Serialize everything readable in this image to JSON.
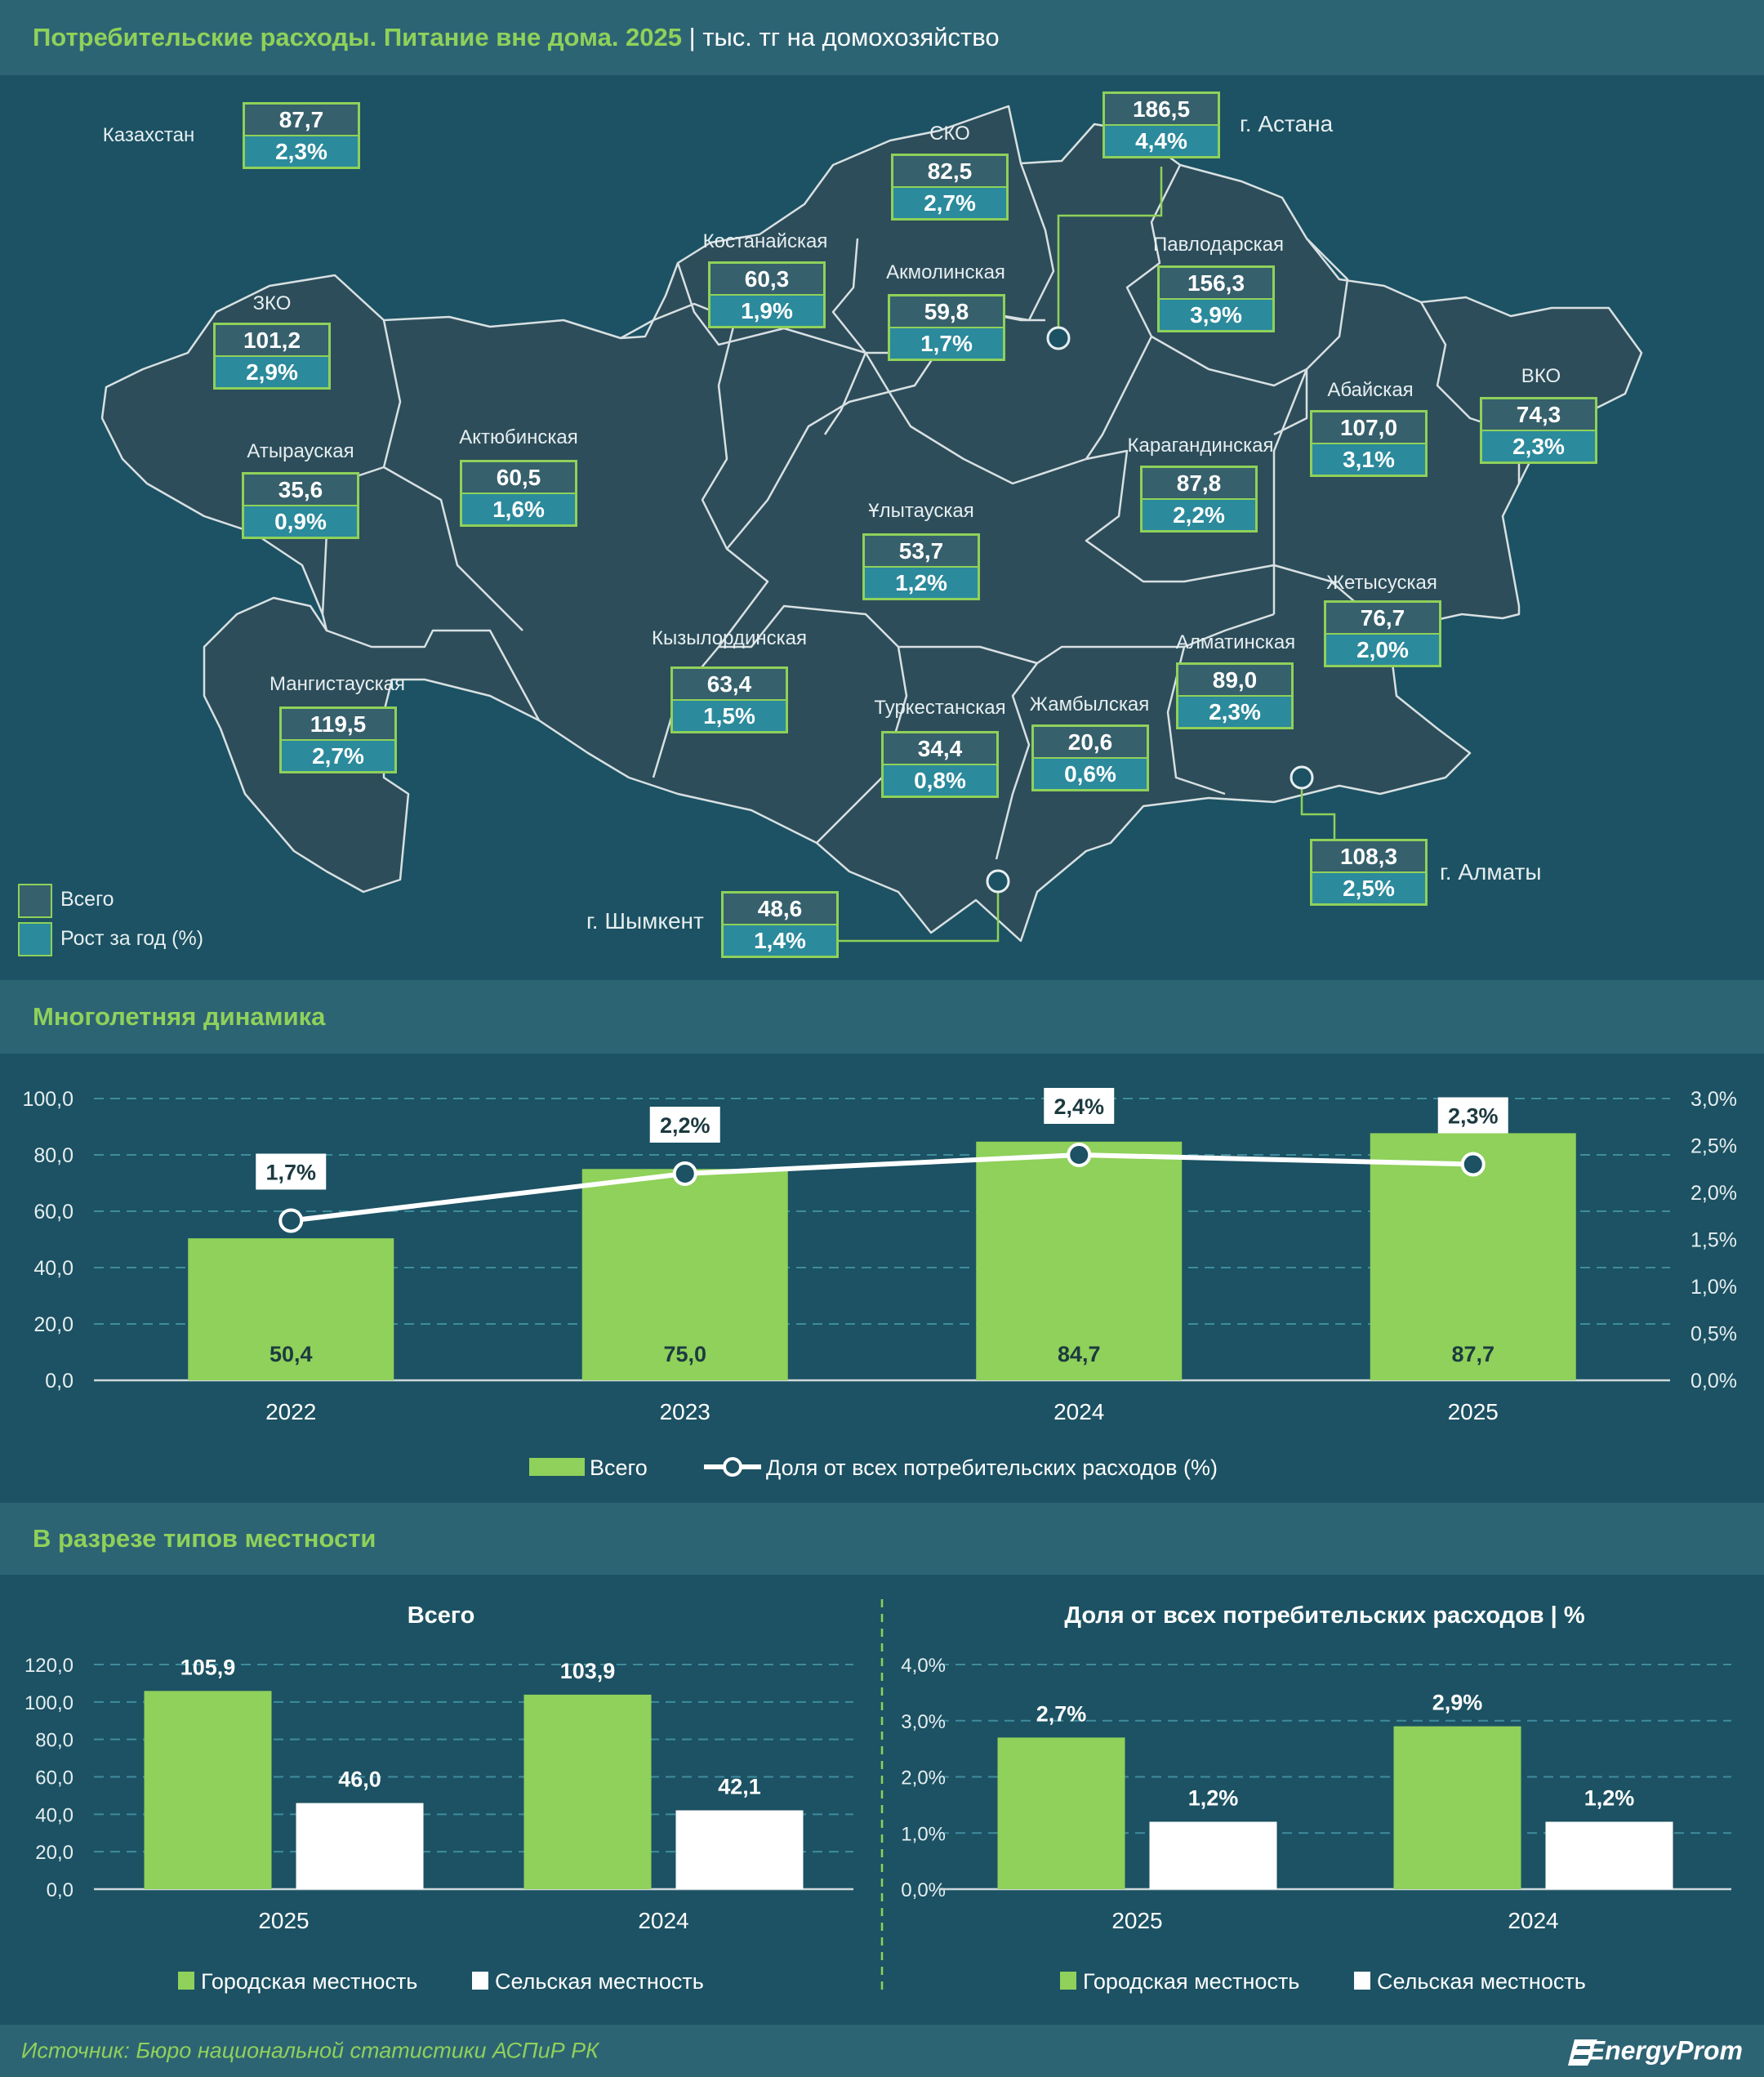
{
  "header": {
    "title": "Потребительские расходы. Питание вне дома. 2025",
    "unit": "тыс. тг на домохозяйство"
  },
  "map": {
    "kazakhstan": {
      "name": "Казахстан",
      "total": "87,7",
      "growth": "2,3%"
    },
    "regions": [
      {
        "name": "ЗКО",
        "total": "101,2",
        "growth": "2,9%"
      },
      {
        "name": "Атырауская",
        "total": "35,6",
        "growth": "0,9%"
      },
      {
        "name": "Мангистауская",
        "total": "119,5",
        "growth": "2,7%"
      },
      {
        "name": "Актюбинская",
        "total": "60,5",
        "growth": "1,6%"
      },
      {
        "name": "Костанайская",
        "total": "60,3",
        "growth": "1,9%"
      },
      {
        "name": "СКО",
        "total": "82,5",
        "growth": "2,7%"
      },
      {
        "name": "Акмолинская",
        "total": "59,8",
        "growth": "1,7%"
      },
      {
        "name": "Павлодарская",
        "total": "156,3",
        "growth": "3,9%"
      },
      {
        "name": "Карагандинская",
        "total": "87,8",
        "growth": "2,2%"
      },
      {
        "name": "Ұлытауская",
        "total": "53,7",
        "growth": "1,2%"
      },
      {
        "name": "Кызылординская",
        "total": "63,4",
        "growth": "1,5%"
      },
      {
        "name": "Туркестанская",
        "total": "34,4",
        "growth": "0,8%"
      },
      {
        "name": "Жамбылская",
        "total": "20,6",
        "growth": "0,6%"
      },
      {
        "name": "Алматинская",
        "total": "89,0",
        "growth": "2,3%"
      },
      {
        "name": "Жетысуская",
        "total": "76,7",
        "growth": "2,0%"
      },
      {
        "name": "Абайская",
        "total": "107,0",
        "growth": "3,1%"
      },
      {
        "name": "ВКО",
        "total": "74,3",
        "growth": "2,3%"
      }
    ],
    "cities": [
      {
        "name": "г. Астана",
        "total": "186,5",
        "growth": "4,4%"
      },
      {
        "name": "г. Алматы",
        "total": "108,3",
        "growth": "2,5%"
      },
      {
        "name": "г. Шымкент",
        "total": "48,6",
        "growth": "1,4%"
      }
    ],
    "legend": {
      "total": "Всего",
      "growth": "Рост за год (%)"
    }
  },
  "dynamics": {
    "section_title": "Многолетняя динамика",
    "y_left_ticks": [
      "0,0",
      "20,0",
      "40,0",
      "60,0",
      "80,0",
      "100,0"
    ],
    "y_right_ticks": [
      "0,0%",
      "0,5%",
      "1,0%",
      "1,5%",
      "2,0%",
      "2,5%",
      "3,0%"
    ],
    "legend_bar": "Всего",
    "legend_line": "Доля от всех потребительских расходов (%)"
  },
  "locality": {
    "section_title": "В разрезе типов местности",
    "left_title": "Всего",
    "right_title": "Доля от всех потребительских расходов | %",
    "left_ticks": [
      "0,0",
      "20,0",
      "40,0",
      "60,0",
      "80,0",
      "100,0",
      "120,0"
    ],
    "right_ticks": [
      "0,0%",
      "1,0%",
      "2,0%",
      "3,0%",
      "4,0%"
    ],
    "legend_urban": "Городская местность",
    "legend_rural": "Сельская местность"
  },
  "footer": {
    "source": "Источник: Бюро национальной статистики АСПиР РК",
    "brand": "EnergyProm"
  },
  "colors": {
    "green": "#8fd15a",
    "bg": "#1c5263",
    "band": "#2d6474",
    "teal": "#2b8a9c"
  },
  "chart_data": [
    {
      "type": "bar",
      "categories": [
        "2022",
        "2023",
        "2024",
        "2025"
      ],
      "series": [
        {
          "name": "Всего",
          "values": [
            50.4,
            75.0,
            84.7,
            87.7
          ],
          "labels": [
            "50,4",
            "75,0",
            "84,7",
            "87,7"
          ],
          "axis": "left"
        },
        {
          "name": "Доля от всех потребительских расходов (%)",
          "kind": "line",
          "values": [
            1.7,
            2.2,
            2.4,
            2.3
          ],
          "labels": [
            "1,7%",
            "2,2%",
            "2,4%",
            "2,3%"
          ],
          "axis": "right"
        }
      ],
      "ylim": [
        0,
        100
      ],
      "y2lim": [
        0,
        3
      ],
      "grid": true,
      "legend": "bottom"
    },
    {
      "type": "bar",
      "title": "Всего",
      "categories": [
        "2025",
        "2024"
      ],
      "series": [
        {
          "name": "Городская местность",
          "values": [
            105.9,
            103.9
          ],
          "labels": [
            "105,9",
            "103,9"
          ]
        },
        {
          "name": "Сельская местность",
          "values": [
            46.0,
            42.1
          ],
          "labels": [
            "46,0",
            "42,1"
          ]
        }
      ],
      "ylim": [
        0,
        120
      ],
      "grid": true,
      "legend": "bottom"
    },
    {
      "type": "bar",
      "title": "Доля от всех потребительских расходов | %",
      "categories": [
        "2025",
        "2024"
      ],
      "series": [
        {
          "name": "Городская местность",
          "values": [
            2.7,
            2.9
          ],
          "labels": [
            "2,7%",
            "2,9%"
          ]
        },
        {
          "name": "Сельская местность",
          "values": [
            1.2,
            1.2
          ],
          "labels": [
            "1,2%",
            "1,2%"
          ]
        }
      ],
      "ylim": [
        0,
        4
      ],
      "grid": true,
      "legend": "bottom"
    }
  ]
}
